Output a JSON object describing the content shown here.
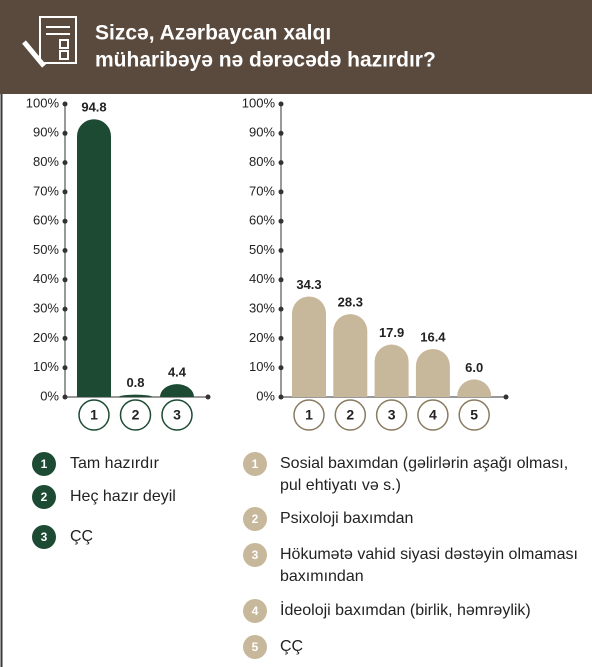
{
  "header": {
    "title": [
      "Sizcə, Azərbaycan xalqı",
      "müharibəyə nə dərəcədə hazırdır?"
    ]
  },
  "chart_data": [
    {
      "type": "bar",
      "categories": [
        "1",
        "2",
        "3"
      ],
      "values": [
        94.8,
        0.8,
        4.4
      ],
      "color": "#1d4a33",
      "ylim": [
        0,
        100
      ],
      "yticks": [
        {
          "value": 0,
          "label": "0%"
        },
        {
          "value": 10,
          "label": "10%"
        },
        {
          "value": 20,
          "label": "20%"
        },
        {
          "value": 30,
          "label": "30%"
        },
        {
          "value": 40,
          "label": "40%"
        },
        {
          "value": 50,
          "label": "50%"
        },
        {
          "value": 60,
          "label": "60%"
        },
        {
          "value": 70,
          "label": "70%"
        },
        {
          "value": 80,
          "label": "80%"
        },
        {
          "value": 90,
          "label": "90%"
        },
        {
          "value": 100,
          "label": "100%"
        }
      ],
      "legend": [
        "Tam hazırdır",
        "Heç hazır deyil",
        "ÇÇ"
      ]
    },
    {
      "type": "bar",
      "categories": [
        "1",
        "2",
        "3",
        "4",
        "5"
      ],
      "values": [
        34.3,
        28.3,
        17.9,
        16.4,
        6.0
      ],
      "value_labels": [
        "34.3",
        "28.3",
        "17.9",
        "16.4",
        "6.0"
      ],
      "color": "#c8b89b",
      "ylim": [
        0,
        100
      ],
      "yticks": [
        {
          "value": 0,
          "label": "0%"
        },
        {
          "value": 10,
          "label": "10%"
        },
        {
          "value": 20,
          "label": "20%"
        },
        {
          "value": 30,
          "label": "30%"
        },
        {
          "value": 40,
          "label": "40%"
        },
        {
          "value": 50,
          "label": "50%"
        },
        {
          "value": 60,
          "label": "60%"
        },
        {
          "value": 70,
          "label": "70%"
        },
        {
          "value": 80,
          "label": "80%"
        },
        {
          "value": 90,
          "label": "90%"
        },
        {
          "value": 100,
          "label": "100%"
        }
      ],
      "legend": [
        "Sosial baxımdan (gəlirlərin aşağı olması, pul ehtiyatı və s.)",
        "Psixoloji baxımdan",
        "Hökumətə vahid siyasi dəstəyin olmaması baxımından",
        "İdeoloji baxımdan (birlik, həmrəylik)",
        "ÇÇ"
      ]
    }
  ]
}
